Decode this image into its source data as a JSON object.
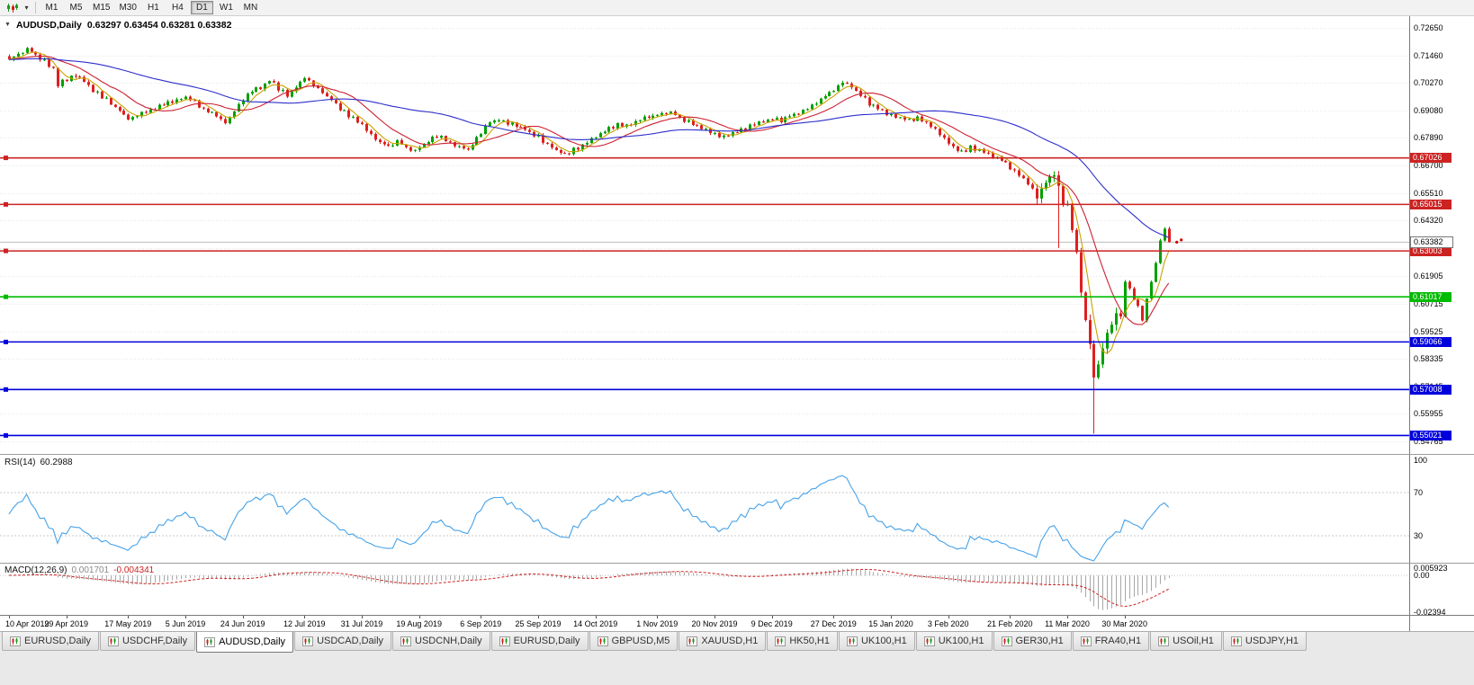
{
  "toolbar": {
    "timeframes": [
      "M1",
      "M5",
      "M15",
      "M30",
      "H1",
      "H4",
      "D1",
      "W1",
      "MN"
    ],
    "active_timeframe": "D1"
  },
  "chart_window": {
    "one_click_arrow": "▼",
    "title_symbol": "AUDUSD,Daily",
    "title_ohlc": "0.63297 0.63454 0.63281 0.63382"
  },
  "chart_data": {
    "type": "candlestick",
    "symbol": "AUDUSD",
    "period": "Daily",
    "ohlc": {
      "open": 0.63297,
      "high": 0.63454,
      "low": 0.63281,
      "close": 0.63382
    },
    "candle_count": 264,
    "up_color": "#00a000",
    "down_color": "#dd2020",
    "price_axis_labels": [
      "0.72650",
      "0.71460",
      "0.70270",
      "0.69080",
      "0.67890",
      "0.66700",
      "0.65510",
      "0.64320",
      "0.63130",
      "0.61905",
      "0.60715",
      "0.59525",
      "0.58335",
      "0.57145",
      "0.55955",
      "0.54765"
    ],
    "time_axis_labels": [
      {
        "label": "10 Apr 2019",
        "index": 0
      },
      {
        "label": "29 Apr 2019",
        "index": 13
      },
      {
        "label": "17 May 2019",
        "index": 27
      },
      {
        "label": "5 Jun 2019",
        "index": 40
      },
      {
        "label": "24 Jun 2019",
        "index": 53
      },
      {
        "label": "12 Jul 2019",
        "index": 67
      },
      {
        "label": "31 Jul 2019",
        "index": 80
      },
      {
        "label": "19 Aug 2019",
        "index": 93
      },
      {
        "label": "6 Sep 2019",
        "index": 107
      },
      {
        "label": "25 Sep 2019",
        "index": 120
      },
      {
        "label": "14 Oct 2019",
        "index": 133
      },
      {
        "label": "1 Nov 2019",
        "index": 147
      },
      {
        "label": "20 Nov 2019",
        "index": 160
      },
      {
        "label": "9 Dec 2019",
        "index": 173
      },
      {
        "label": "27 Dec 2019",
        "index": 187
      },
      {
        "label": "15 Jan 2020",
        "index": 200
      },
      {
        "label": "3 Feb 2020",
        "index": 213
      },
      {
        "label": "21 Feb 2020",
        "index": 227
      },
      {
        "label": "11 Mar 2020",
        "index": 240
      },
      {
        "label": "30 Mar 2020",
        "index": 253
      }
    ],
    "hlines": [
      {
        "price": 0.67026,
        "label": "0.67026",
        "color": "#cc2222"
      },
      {
        "price": 0.65015,
        "label": "0.65015",
        "color": "#cc2222"
      },
      {
        "price": 0.63003,
        "label": "0.63003",
        "color": "#cc2222"
      },
      {
        "price": 0.61017,
        "label": "0.61017",
        "color": "#00bb00"
      },
      {
        "price": 0.59066,
        "label": "0.59066",
        "color": "#0000dd"
      },
      {
        "price": 0.57008,
        "label": "0.57008",
        "color": "#0000dd"
      },
      {
        "price": 0.55021,
        "label": "0.55021",
        "color": "#0000dd"
      }
    ],
    "current_price": {
      "value": 0.63382,
      "label": "0.63382"
    },
    "moving_averages": [
      {
        "period": 5,
        "color": "#caa200"
      },
      {
        "period": 13,
        "color": "#cc2233"
      },
      {
        "period": 45,
        "color": "#2e2ecc"
      }
    ],
    "price_anchors": [
      [
        0,
        0.7128
      ],
      [
        2,
        0.7152
      ],
      [
        4,
        0.7174
      ],
      [
        6,
        0.715
      ],
      [
        8,
        0.7118
      ],
      [
        10,
        0.7082
      ],
      [
        11,
        0.7018
      ],
      [
        13,
        0.7044
      ],
      [
        15,
        0.7058
      ],
      [
        17,
        0.7032
      ],
      [
        19,
        0.6996
      ],
      [
        21,
        0.6968
      ],
      [
        23,
        0.694
      ],
      [
        25,
        0.6906
      ],
      [
        27,
        0.6868
      ],
      [
        29,
        0.6888
      ],
      [
        31,
        0.6906
      ],
      [
        34,
        0.6924
      ],
      [
        37,
        0.6948
      ],
      [
        40,
        0.6968
      ],
      [
        42,
        0.6942
      ],
      [
        44,
        0.6918
      ],
      [
        46,
        0.6898
      ],
      [
        49,
        0.6852
      ],
      [
        51,
        0.6902
      ],
      [
        53,
        0.6958
      ],
      [
        55,
        0.6988
      ],
      [
        57,
        0.7008
      ],
      [
        59,
        0.7036
      ],
      [
        61,
        0.7002
      ],
      [
        63,
        0.6976
      ],
      [
        65,
        0.7008
      ],
      [
        67,
        0.7046
      ],
      [
        69,
        0.7018
      ],
      [
        71,
        0.6988
      ],
      [
        73,
        0.6952
      ],
      [
        75,
        0.6912
      ],
      [
        77,
        0.6886
      ],
      [
        80,
        0.6842
      ],
      [
        82,
        0.6808
      ],
      [
        84,
        0.677
      ],
      [
        86,
        0.6752
      ],
      [
        88,
        0.6778
      ],
      [
        90,
        0.6748
      ],
      [
        92,
        0.6738
      ],
      [
        94,
        0.6762
      ],
      [
        96,
        0.6788
      ],
      [
        98,
        0.6792
      ],
      [
        100,
        0.6768
      ],
      [
        102,
        0.6748
      ],
      [
        104,
        0.6736
      ],
      [
        107,
        0.6812
      ],
      [
        109,
        0.6858
      ],
      [
        111,
        0.6872
      ],
      [
        113,
        0.6856
      ],
      [
        115,
        0.6838
      ],
      [
        117,
        0.6822
      ],
      [
        120,
        0.6792
      ],
      [
        122,
        0.6762
      ],
      [
        124,
        0.6738
      ],
      [
        126,
        0.6718
      ],
      [
        128,
        0.6738
      ],
      [
        130,
        0.6758
      ],
      [
        132,
        0.6782
      ],
      [
        134,
        0.6808
      ],
      [
        136,
        0.6828
      ],
      [
        138,
        0.6848
      ],
      [
        140,
        0.6842
      ],
      [
        142,
        0.6862
      ],
      [
        144,
        0.6872
      ],
      [
        147,
        0.6892
      ],
      [
        149,
        0.6902
      ],
      [
        151,
        0.6888
      ],
      [
        153,
        0.6868
      ],
      [
        155,
        0.6848
      ],
      [
        157,
        0.6832
      ],
      [
        160,
        0.6808
      ],
      [
        162,
        0.6792
      ],
      [
        164,
        0.6808
      ],
      [
        166,
        0.6822
      ],
      [
        168,
        0.6838
      ],
      [
        170,
        0.6852
      ],
      [
        173,
        0.6878
      ],
      [
        175,
        0.6862
      ],
      [
        177,
        0.6882
      ],
      [
        179,
        0.6902
      ],
      [
        181,
        0.6922
      ],
      [
        183,
        0.6942
      ],
      [
        185,
        0.6972
      ],
      [
        187,
        0.7002
      ],
      [
        189,
        0.703
      ],
      [
        191,
        0.7008
      ],
      [
        193,
        0.6978
      ],
      [
        195,
        0.6938
      ],
      [
        197,
        0.6912
      ],
      [
        200,
        0.6888
      ],
      [
        202,
        0.6872
      ],
      [
        204,
        0.6862
      ],
      [
        206,
        0.688
      ],
      [
        208,
        0.6858
      ],
      [
        210,
        0.6828
      ],
      [
        212,
        0.6782
      ],
      [
        214,
        0.6744
      ],
      [
        216,
        0.6726
      ],
      [
        218,
        0.6746
      ],
      [
        220,
        0.674
      ],
      [
        222,
        0.6718
      ],
      [
        224,
        0.67
      ],
      [
        226,
        0.6678
      ],
      [
        228,
        0.6645
      ],
      [
        230,
        0.661
      ],
      [
        232,
        0.6568
      ],
      [
        233,
        0.6524
      ],
      [
        235,
        0.6608
      ],
      [
        237,
        0.6642
      ],
      [
        238,
        0.6582
      ],
      [
        239,
        0.6508
      ],
      [
        240,
        0.6492
      ],
      [
        241,
        0.6388
      ],
      [
        242,
        0.6292
      ],
      [
        243,
        0.6128
      ],
      [
        244,
        0.5998
      ],
      [
        245,
        0.5898
      ],
      [
        246,
        0.5745
      ],
      [
        247,
        0.5808
      ],
      [
        248,
        0.5878
      ],
      [
        249,
        0.5962
      ],
      [
        250,
        0.5972
      ],
      [
        251,
        0.6038
      ],
      [
        252,
        0.6002
      ],
      [
        253,
        0.6168
      ],
      [
        254,
        0.6138
      ],
      [
        255,
        0.6092
      ],
      [
        256,
        0.6058
      ],
      [
        257,
        0.5998
      ],
      [
        258,
        0.6088
      ],
      [
        259,
        0.6168
      ],
      [
        260,
        0.6242
      ],
      [
        261,
        0.6352
      ],
      [
        262,
        0.6392
      ],
      [
        263,
        0.63382
      ]
    ],
    "spikes": [
      {
        "index": 238,
        "low": 0.6313
      },
      {
        "index": 246,
        "low": 0.551
      }
    ],
    "rsi": {
      "name": "RSI(14)",
      "value": "60.2988",
      "color": "#46a2e8",
      "levels": [
        "100",
        "70",
        "30"
      ],
      "level_lines": [
        70,
        30
      ]
    },
    "macd": {
      "name": "MACD(12,26,9)",
      "main_value": "0.001701",
      "signal_value": "-0.004341",
      "axis_labels": [
        "0.005923",
        "0.00",
        "-0.02394"
      ],
      "axis_max": 0.005923,
      "axis_min": -0.02394,
      "histogram_color": "#a8a8a8",
      "signal_color": "#cc2222"
    }
  },
  "tabs": [
    {
      "label": "EURUSD,Daily",
      "active": false
    },
    {
      "label": "USDCHF,Daily",
      "active": false
    },
    {
      "label": "AUDUSD,Daily",
      "active": true
    },
    {
      "label": "USDCAD,Daily",
      "active": false
    },
    {
      "label": "USDCNH,Daily",
      "active": false
    },
    {
      "label": "EURUSD,Daily",
      "active": false
    },
    {
      "label": "GBPUSD,M5",
      "active": false
    },
    {
      "label": "XAUUSD,H1",
      "active": false
    },
    {
      "label": "HK50,H1",
      "active": false
    },
    {
      "label": "UK100,H1",
      "active": false
    },
    {
      "label": "UK100,H1",
      "active": false
    },
    {
      "label": "GER30,H1",
      "active": false
    },
    {
      "label": "FRA40,H1",
      "active": false
    },
    {
      "label": "USOil,H1",
      "active": false
    },
    {
      "label": "USDJPY,H1",
      "active": false
    }
  ]
}
